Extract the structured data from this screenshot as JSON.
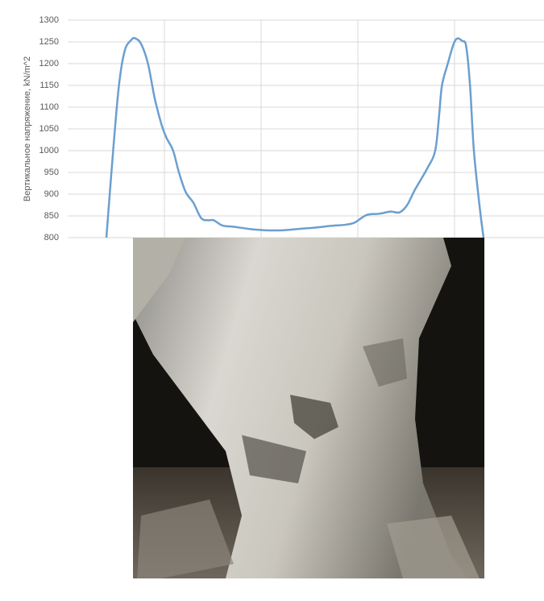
{
  "chart_data": {
    "type": "line",
    "y_label": "Вертикальное напряжение, kN/m^2",
    "x": [
      0.4,
      0.47,
      0.53,
      0.59,
      0.66,
      0.7,
      0.76,
      0.83,
      0.9,
      0.97,
      1.02,
      1.09,
      1.15,
      1.22,
      1.3,
      1.38,
      1.45,
      1.51,
      1.6,
      1.72,
      1.88,
      2.05,
      2.22,
      2.38,
      2.55,
      2.72,
      2.88,
      2.97,
      3.09,
      3.22,
      3.34,
      3.43,
      3.51,
      3.59,
      3.72,
      3.8,
      3.84,
      3.87,
      3.93,
      3.99,
      4.03,
      4.08,
      4.12,
      4.16,
      4.2,
      4.26,
      4.3
    ],
    "values": [
      800,
      1000,
      1150,
      1230,
      1255,
      1258,
      1245,
      1200,
      1120,
      1060,
      1030,
      1000,
      950,
      905,
      880,
      845,
      840,
      840,
      828,
      825,
      820,
      817,
      817,
      820,
      823,
      827,
      830,
      835,
      852,
      855,
      860,
      858,
      875,
      910,
      960,
      1000,
      1080,
      1150,
      1200,
      1245,
      1258,
      1252,
      1240,
      1150,
      1000,
      870,
      800
    ],
    "color": "#6b9fd0",
    "xlim": [
      0,
      4.925
    ],
    "ylim": [
      800,
      1300
    ],
    "yticks": [
      800,
      850,
      900,
      950,
      1000,
      1050,
      1100,
      1150,
      1200,
      1250,
      1300
    ],
    "grid": true
  }
}
